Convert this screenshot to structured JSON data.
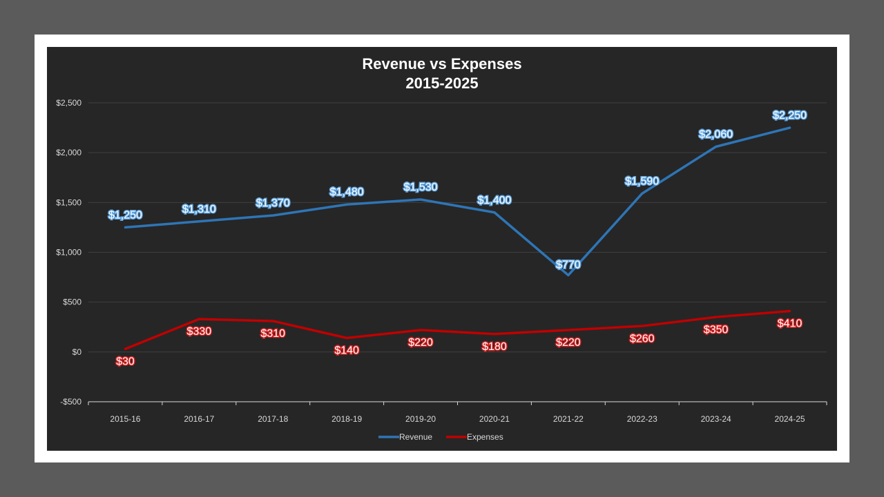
{
  "chart_data": {
    "type": "line",
    "title": "Revenue vs Expenses",
    "subtitle": "2015-2025",
    "xlabel": "",
    "ylabel": "",
    "categories": [
      "2015-16",
      "2016-17",
      "2017-18",
      "2018-19",
      "2019-20",
      "2020-21",
      "2021-22",
      "2022-23",
      "2023-24",
      "2024-25"
    ],
    "ylim": [
      -500,
      2500
    ],
    "yticks": [
      -500,
      0,
      500,
      1000,
      1500,
      2000,
      2500
    ],
    "ytick_labels": [
      "-$500",
      "$0",
      "$500",
      "$1,000",
      "$1,500",
      "$2,000",
      "$2,500"
    ],
    "grid": true,
    "legend_position": "bottom",
    "series": [
      {
        "name": "Revenue",
        "color": "#2e75b6",
        "values": [
          1250,
          1310,
          1370,
          1480,
          1530,
          1400,
          770,
          1590,
          2060,
          2250
        ],
        "labels": [
          "$1,250",
          "$1,310",
          "$1,370",
          "$1,480",
          "$1,530",
          "$1,400",
          "$770",
          "$1,590",
          "$2,060",
          "$2,250"
        ]
      },
      {
        "name": "Expenses",
        "color": "#c00000",
        "values": [
          30,
          330,
          310,
          140,
          220,
          180,
          220,
          260,
          350,
          410
        ],
        "labels": [
          "$30",
          "$330",
          "$310",
          "$140",
          "$220",
          "$180",
          "$220",
          "$260",
          "$350",
          "$410"
        ]
      }
    ]
  }
}
